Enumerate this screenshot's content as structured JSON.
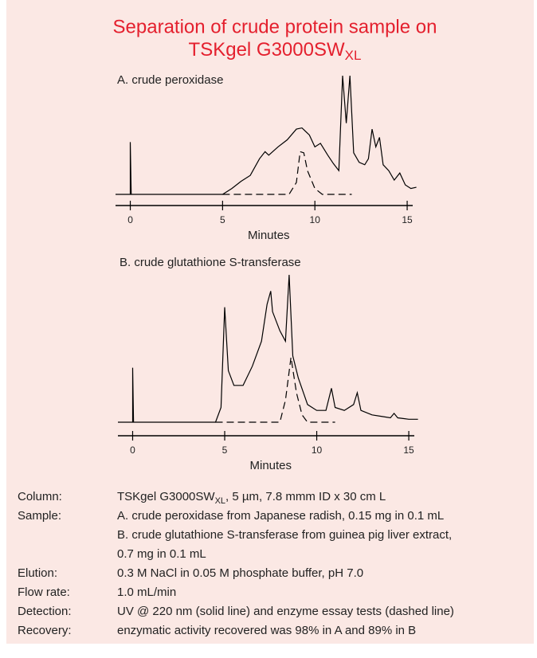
{
  "title": {
    "line1": "Separation of crude protein sample on",
    "line2": "TSKgel G3000SW",
    "line2_sub": "XL"
  },
  "chart_data": [
    {
      "type": "line",
      "title": "A. crude peroxidase",
      "x_label": "Minutes",
      "xlim": [
        -0.8,
        15.3
      ],
      "xticks": [
        0,
        5,
        10,
        15
      ],
      "ylim": [
        0,
        100
      ],
      "series": [
        {
          "color": "#000000",
          "style": "solid",
          "x": [
            -0.8,
            0,
            0,
            0.05,
            5,
            5.5,
            6,
            6.5,
            7,
            7.3,
            7.5,
            8,
            8.5,
            9,
            9.3,
            9.7,
            10,
            10.3,
            10.7,
            11,
            11.3,
            11.5,
            11.7,
            11.9,
            12.1,
            12.4,
            12.7,
            12.9,
            13.1,
            13.3,
            13.5,
            13.7,
            14,
            14.3,
            14.6,
            14.9,
            15.2,
            15.5
          ],
          "values": [
            0,
            0,
            44,
            0,
            0,
            5,
            11,
            16,
            30,
            36,
            33,
            40,
            46,
            55,
            56,
            50,
            40,
            43,
            33,
            26,
            20,
            100,
            60,
            100,
            35,
            27,
            25,
            30,
            55,
            40,
            48,
            25,
            20,
            12,
            18,
            8,
            5,
            6
          ]
        },
        {
          "color": "#000000",
          "style": "dashed",
          "x": [
            5,
            8.6,
            9,
            9.2,
            9.4,
            9.6,
            10,
            10.4,
            12
          ],
          "values": [
            0,
            0,
            10,
            36,
            35,
            20,
            5,
            0,
            0
          ]
        }
      ]
    },
    {
      "type": "line",
      "title": "B. crude glutathione S-transferase",
      "x_label": "Minutes",
      "xlim": [
        -0.8,
        15.3
      ],
      "xticks": [
        0,
        5,
        10,
        15
      ],
      "ylim": [
        0,
        100
      ],
      "series": [
        {
          "color": "#000000",
          "style": "solid",
          "x": [
            -0.8,
            0,
            0,
            0.05,
            4.5,
            4.8,
            5,
            5.2,
            5.5,
            6,
            6.5,
            7,
            7.3,
            7.5,
            7.6,
            8,
            8.3,
            8.5,
            8.7,
            9,
            9.5,
            10,
            10.5,
            10.8,
            11,
            11.5,
            12,
            12.2,
            12.4,
            13,
            13.5,
            14,
            14.2,
            14.4,
            15,
            15.5
          ],
          "values": [
            0,
            0,
            37,
            0,
            0,
            10,
            78,
            35,
            25,
            25,
            38,
            55,
            80,
            89,
            75,
            62,
            55,
            100,
            45,
            30,
            12,
            8,
            8,
            23,
            10,
            8,
            12,
            20,
            8,
            5,
            4,
            3,
            6,
            3,
            2,
            2
          ]
        },
        {
          "color": "#000000",
          "style": "dashed",
          "x": [
            4.5,
            8,
            8.3,
            8.6,
            8.9,
            9.2,
            9.5,
            11
          ],
          "values": [
            0,
            0,
            15,
            44,
            20,
            5,
            0,
            0
          ]
        }
      ]
    }
  ],
  "conditions": [
    {
      "label": "Column:",
      "value": [
        "TSKgel G3000SW",
        "XL",
        ", 5 µm, 7.8 mmm ID x 30 cm L"
      ]
    },
    {
      "label": "Sample:",
      "value": [
        "A. crude peroxidase from Japanese radish, 0.15 mg in 0.1 mL",
        "B. crude glutathione S-transferase from guinea pig liver extract,",
        "0.7 mg in 0.1 mL"
      ]
    },
    {
      "label": "Elution:",
      "value": [
        "0.3 M NaCl in 0.05 M phosphate buffer, pH 7.0"
      ]
    },
    {
      "label": "Flow rate:",
      "value": [
        "1.0 mL/min"
      ]
    },
    {
      "label": "Detection:",
      "value": [
        "UV @ 220 nm (solid line) and enzyme essay tests (dashed line)"
      ]
    },
    {
      "label": "Recovery:",
      "value": [
        "enzymatic activity recovered was 98% in A and 89% in B"
      ]
    }
  ]
}
